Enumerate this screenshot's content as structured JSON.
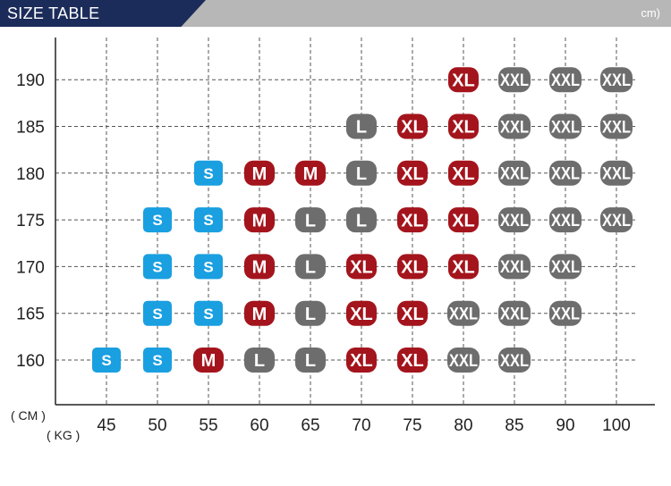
{
  "header": {
    "title": "SIZE TABLE",
    "unit_note": "cm)"
  },
  "colors": {
    "header_bg": "#1c2c5a",
    "header_bar": "#b7b7b7",
    "S": "#1a9fe0",
    "M": "#a4141c",
    "L": "#6d6d6d",
    "XL": "#a4141c",
    "XXL": "#6d6d6d"
  },
  "chart_data": {
    "type": "scatter",
    "title": "SIZE TABLE",
    "xlabel": "( KG )",
    "ylabel": "( CM )",
    "x_ticks": [
      45,
      50,
      55,
      60,
      65,
      70,
      75,
      80,
      85,
      90,
      100
    ],
    "y_ticks": [
      160,
      165,
      170,
      175,
      180,
      185,
      190
    ],
    "grid": true,
    "points": [
      {
        "weight": 45,
        "height": 160,
        "size": "S"
      },
      {
        "weight": 50,
        "height": 160,
        "size": "S"
      },
      {
        "weight": 55,
        "height": 160,
        "size": "M"
      },
      {
        "weight": 60,
        "height": 160,
        "size": "L"
      },
      {
        "weight": 65,
        "height": 160,
        "size": "L"
      },
      {
        "weight": 70,
        "height": 160,
        "size": "XL"
      },
      {
        "weight": 75,
        "height": 160,
        "size": "XL"
      },
      {
        "weight": 80,
        "height": 160,
        "size": "XXL"
      },
      {
        "weight": 85,
        "height": 160,
        "size": "XXL"
      },
      {
        "weight": 50,
        "height": 165,
        "size": "S"
      },
      {
        "weight": 55,
        "height": 165,
        "size": "S"
      },
      {
        "weight": 60,
        "height": 165,
        "size": "M"
      },
      {
        "weight": 65,
        "height": 165,
        "size": "L"
      },
      {
        "weight": 70,
        "height": 165,
        "size": "XL"
      },
      {
        "weight": 75,
        "height": 165,
        "size": "XL"
      },
      {
        "weight": 80,
        "height": 165,
        "size": "XXL"
      },
      {
        "weight": 85,
        "height": 165,
        "size": "XXL"
      },
      {
        "weight": 90,
        "height": 165,
        "size": "XXL"
      },
      {
        "weight": 50,
        "height": 170,
        "size": "S"
      },
      {
        "weight": 55,
        "height": 170,
        "size": "S"
      },
      {
        "weight": 60,
        "height": 170,
        "size": "M"
      },
      {
        "weight": 65,
        "height": 170,
        "size": "L"
      },
      {
        "weight": 70,
        "height": 170,
        "size": "XL"
      },
      {
        "weight": 75,
        "height": 170,
        "size": "XL"
      },
      {
        "weight": 80,
        "height": 170,
        "size": "XL"
      },
      {
        "weight": 85,
        "height": 170,
        "size": "XXL"
      },
      {
        "weight": 90,
        "height": 170,
        "size": "XXL"
      },
      {
        "weight": 50,
        "height": 175,
        "size": "S"
      },
      {
        "weight": 55,
        "height": 175,
        "size": "S"
      },
      {
        "weight": 60,
        "height": 175,
        "size": "M"
      },
      {
        "weight": 65,
        "height": 175,
        "size": "L"
      },
      {
        "weight": 70,
        "height": 175,
        "size": "L"
      },
      {
        "weight": 75,
        "height": 175,
        "size": "XL"
      },
      {
        "weight": 80,
        "height": 175,
        "size": "XL"
      },
      {
        "weight": 85,
        "height": 175,
        "size": "XXL"
      },
      {
        "weight": 90,
        "height": 175,
        "size": "XXL"
      },
      {
        "weight": 100,
        "height": 175,
        "size": "XXL"
      },
      {
        "weight": 55,
        "height": 180,
        "size": "S"
      },
      {
        "weight": 60,
        "height": 180,
        "size": "M"
      },
      {
        "weight": 65,
        "height": 180,
        "size": "M"
      },
      {
        "weight": 70,
        "height": 180,
        "size": "L"
      },
      {
        "weight": 75,
        "height": 180,
        "size": "XL"
      },
      {
        "weight": 80,
        "height": 180,
        "size": "XL"
      },
      {
        "weight": 85,
        "height": 180,
        "size": "XXL"
      },
      {
        "weight": 90,
        "height": 180,
        "size": "XXL"
      },
      {
        "weight": 100,
        "height": 180,
        "size": "XXL"
      },
      {
        "weight": 70,
        "height": 185,
        "size": "L"
      },
      {
        "weight": 75,
        "height": 185,
        "size": "XL"
      },
      {
        "weight": 80,
        "height": 185,
        "size": "XL"
      },
      {
        "weight": 85,
        "height": 185,
        "size": "XXL"
      },
      {
        "weight": 90,
        "height": 185,
        "size": "XXL"
      },
      {
        "weight": 100,
        "height": 185,
        "size": "XXL"
      },
      {
        "weight": 80,
        "height": 190,
        "size": "XL"
      },
      {
        "weight": 85,
        "height": 190,
        "size": "XXL"
      },
      {
        "weight": 90,
        "height": 190,
        "size": "XXL"
      },
      {
        "weight": 100,
        "height": 190,
        "size": "XXL"
      }
    ]
  }
}
